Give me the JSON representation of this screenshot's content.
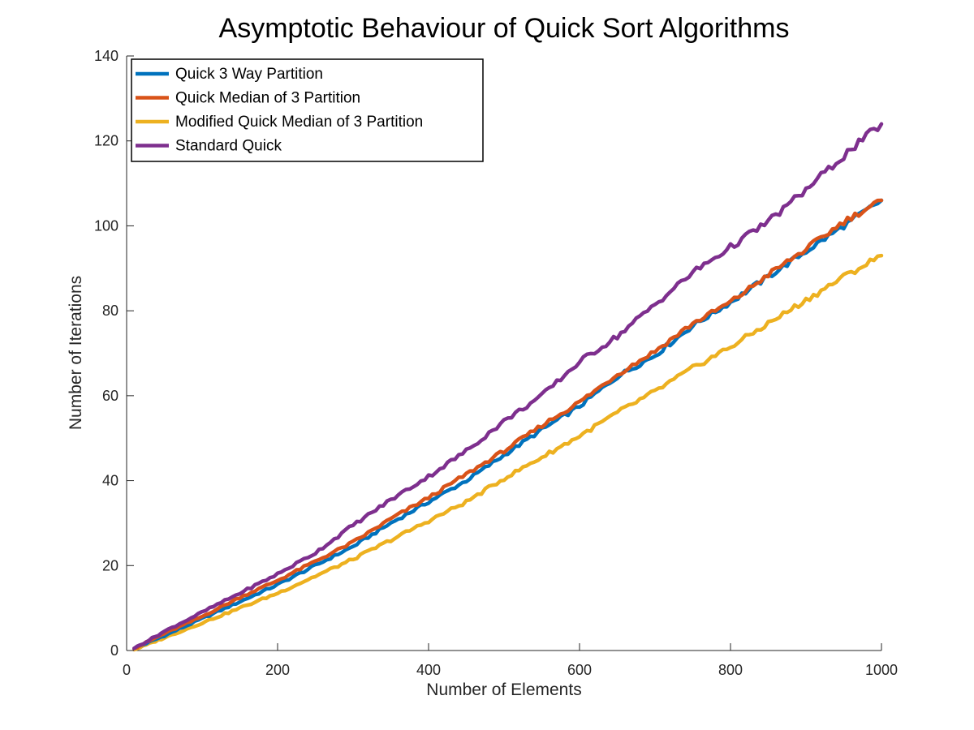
{
  "chart_data": {
    "type": "line",
    "title": "Asymptotic Behaviour of Quick Sort Algorithms",
    "xlabel": "Number of Elements",
    "ylabel": "Number of Iterations",
    "xlim": [
      0,
      1000
    ],
    "ylim": [
      0,
      140
    ],
    "xticks": [
      0,
      200,
      400,
      600,
      800,
      1000
    ],
    "xtick_labels": [
      "0",
      "200",
      "400",
      "600",
      "800",
      "1000"
    ],
    "yticks": [
      0,
      20,
      40,
      60,
      80,
      100,
      120,
      140
    ],
    "ytick_labels": [
      "0",
      "20",
      "40",
      "60",
      "80",
      "100",
      "120",
      "140"
    ],
    "grid": false,
    "legend_position": "top-left",
    "x": [
      10,
      50,
      100,
      150,
      200,
      250,
      300,
      350,
      400,
      450,
      500,
      550,
      600,
      650,
      700,
      750,
      800,
      850,
      900,
      950,
      1000
    ],
    "series": [
      {
        "name": "Quick 3 Way Partition",
        "color": "#0072BD",
        "values": [
          0.5,
          3.5,
          7.5,
          11.5,
          15.5,
          20,
          24.5,
          30,
          35,
          40,
          46,
          52,
          57.5,
          64.5,
          69.5,
          76.5,
          82,
          88,
          94,
          100,
          106
        ]
      },
      {
        "name": "Quick Median of 3 Partition",
        "color": "#D95319",
        "values": [
          0.5,
          4,
          8,
          12.5,
          16.5,
          21,
          25.5,
          31,
          36,
          41.5,
          47,
          53,
          58.5,
          65,
          70.5,
          77,
          82,
          88.5,
          94.5,
          101,
          106
        ]
      },
      {
        "name": "Modified Quick Median of 3 Partition",
        "color": "#EDB120",
        "values": [
          0.2,
          3,
          6.5,
          10,
          13.5,
          17.5,
          21.5,
          26,
          30.5,
          35,
          40.5,
          45.5,
          50.5,
          56,
          61,
          66.5,
          71.5,
          77,
          82.5,
          88,
          93
        ]
      },
      {
        "name": "Standard Quick",
        "color": "#7E2F8E",
        "values": [
          0.5,
          4.5,
          9,
          13.5,
          18,
          23,
          29.5,
          35.5,
          41,
          47,
          54,
          60,
          68,
          74,
          81.5,
          89,
          95,
          101,
          108.5,
          116.5,
          124
        ]
      }
    ]
  }
}
